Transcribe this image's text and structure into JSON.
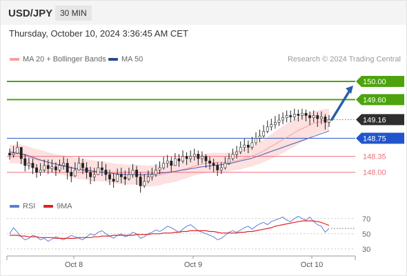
{
  "header": {
    "pair": "USD/JPY",
    "timeframe": "30 MIN"
  },
  "timestamp": "Thursday, October 10, 2024 3:36:45 AM CET",
  "legend": {
    "bollinger": "MA 20 + Bollinger Bands",
    "ma50": "MA 50"
  },
  "credit": "Research © 2024 Trading Central",
  "rsi_legend": {
    "rsi": "RSI",
    "ma": "9MA"
  },
  "colors": {
    "up_target": "#4ca30d",
    "support": "#e8707a",
    "pivot": "#2255cc",
    "current": "#2e2e2e",
    "arrow": "#2a5ea8",
    "bands": "#fde0e0",
    "ma20": "#f4a0a0",
    "ma50": "#4a5bb0",
    "rsi": "#5c7fd6",
    "rsi_ma": "#e02020"
  },
  "chart_data": [
    {
      "type": "candlestick",
      "title": "USD/JPY",
      "timeframe": "30 MIN",
      "x_ticks": [
        "Oct 8",
        "Oct 9",
        "Oct 10"
      ],
      "ylim": [
        147.57,
        150.35
      ],
      "levels": [
        {
          "label": "150.00",
          "value": 150.0,
          "kind": "resistance"
        },
        {
          "label": "149.60",
          "value": 149.6,
          "kind": "resistance"
        },
        {
          "label": "149.16",
          "value": 149.16,
          "kind": "current"
        },
        {
          "label": "148.75",
          "value": 148.75,
          "kind": "pivot"
        },
        {
          "label": "148.35",
          "value": 148.35,
          "kind": "support"
        },
        {
          "label": "148.00",
          "value": 148.0,
          "kind": "support"
        }
      ],
      "indicators": [
        "MA 20 + Bollinger Bands",
        "MA 50"
      ],
      "close": [
        148.38,
        148.42,
        148.55,
        148.3,
        148.15,
        148.2,
        148.1,
        148.0,
        148.05,
        148.15,
        148.08,
        148.12,
        148.05,
        148.15,
        148.2,
        148.0,
        147.92,
        148.05,
        148.2,
        148.1,
        148.0,
        147.9,
        147.95,
        148.1,
        148.05,
        147.95,
        147.85,
        147.8,
        147.95,
        147.9,
        147.85,
        147.95,
        148.05,
        147.9,
        147.7,
        147.8,
        147.9,
        147.95,
        148.05,
        148.1,
        148.2,
        148.25,
        148.15,
        148.3,
        148.25,
        148.35,
        148.3,
        148.35,
        148.4,
        148.3,
        148.35,
        148.25,
        148.2,
        148.15,
        148.05,
        148.1,
        148.2,
        148.3,
        148.4,
        148.45,
        148.55,
        148.6,
        148.55,
        148.65,
        148.75,
        148.8,
        148.9,
        149.0,
        149.05,
        149.1,
        149.15,
        149.2,
        149.25,
        149.22,
        149.28,
        149.25,
        149.3,
        149.25,
        149.2,
        149.25,
        149.18,
        149.22,
        149.1,
        149.16
      ],
      "high": [
        148.52,
        148.58,
        148.68,
        148.55,
        148.4,
        148.32,
        148.3,
        148.18,
        148.2,
        148.28,
        148.28,
        148.28,
        148.22,
        148.28,
        148.34,
        148.3,
        148.12,
        148.22,
        148.34,
        148.3,
        148.22,
        148.12,
        148.1,
        148.24,
        148.24,
        148.18,
        148.06,
        147.98,
        148.08,
        148.1,
        148.04,
        148.1,
        148.18,
        148.14,
        148.0,
        147.96,
        148.04,
        148.1,
        148.18,
        148.24,
        148.34,
        148.38,
        148.34,
        148.42,
        148.4,
        148.48,
        148.44,
        148.48,
        148.52,
        148.48,
        148.46,
        148.4,
        148.34,
        148.3,
        148.22,
        148.22,
        148.34,
        148.42,
        148.52,
        148.58,
        148.68,
        148.74,
        148.7,
        148.78,
        148.88,
        148.94,
        149.04,
        149.14,
        149.18,
        149.24,
        149.28,
        149.32,
        149.36,
        149.36,
        149.4,
        149.38,
        149.4,
        149.38,
        149.34,
        149.36,
        149.32,
        149.34,
        149.28,
        149.26
      ],
      "low": [
        148.28,
        148.32,
        148.4,
        148.18,
        148.02,
        148.06,
        147.96,
        147.88,
        147.92,
        148.0,
        147.96,
        148.0,
        147.92,
        148.0,
        148.06,
        147.84,
        147.78,
        147.9,
        148.04,
        147.96,
        147.86,
        147.74,
        147.8,
        147.94,
        147.92,
        147.82,
        147.72,
        147.66,
        147.78,
        147.76,
        147.72,
        147.82,
        147.88,
        147.72,
        147.55,
        147.66,
        147.76,
        147.82,
        147.9,
        147.96,
        148.06,
        148.1,
        148.02,
        148.14,
        148.12,
        148.2,
        148.16,
        148.22,
        148.26,
        148.16,
        148.2,
        148.1,
        148.06,
        148.0,
        147.92,
        147.96,
        148.06,
        148.16,
        148.26,
        148.3,
        148.4,
        148.46,
        148.42,
        148.5,
        148.6,
        148.66,
        148.76,
        148.86,
        148.92,
        148.96,
        149.02,
        149.06,
        149.1,
        149.1,
        149.14,
        149.12,
        149.16,
        149.12,
        149.04,
        149.1,
        149.0,
        149.06,
        148.94,
        149.0
      ],
      "ma20": [
        148.4,
        148.4,
        148.41,
        148.4,
        148.37,
        148.34,
        148.31,
        148.28,
        148.26,
        148.24,
        148.22,
        148.2,
        148.18,
        148.17,
        148.16,
        148.14,
        148.11,
        148.09,
        148.08,
        148.07,
        148.06,
        148.04,
        148.03,
        148.03,
        148.02,
        148.01,
        147.99,
        147.98,
        147.97,
        147.96,
        147.95,
        147.95,
        147.95,
        147.95,
        147.93,
        147.92,
        147.92,
        147.92,
        147.93,
        147.94,
        147.96,
        147.98,
        147.99,
        148.01,
        148.03,
        148.06,
        148.08,
        148.11,
        148.14,
        148.16,
        148.18,
        148.2,
        148.21,
        148.22,
        148.22,
        148.22,
        148.22,
        148.23,
        148.24,
        148.26,
        148.28,
        148.31,
        148.33,
        148.36,
        148.39,
        148.43,
        148.47,
        148.52,
        148.57,
        148.62,
        148.67,
        148.72,
        148.77,
        148.82,
        148.87,
        148.92,
        148.96,
        149.0,
        149.04,
        149.08,
        149.1,
        149.13,
        149.15,
        149.16
      ],
      "ma50": [
        148.45,
        148.44,
        148.43,
        148.41,
        148.39,
        148.36,
        148.33,
        148.3,
        148.27,
        148.25,
        148.22,
        148.2,
        148.18,
        148.16,
        148.14,
        148.12,
        148.1,
        148.08,
        148.07,
        148.05,
        148.04,
        148.03,
        148.02,
        148.01,
        148.0,
        147.99,
        147.98,
        147.97,
        147.96,
        147.96,
        147.95,
        147.95,
        147.95,
        147.95,
        147.95,
        147.95,
        147.96,
        147.96,
        147.97,
        147.98,
        147.99,
        148.0,
        148.01,
        148.02,
        148.04,
        148.05,
        148.06,
        148.08,
        148.09,
        148.11,
        148.12,
        148.13,
        148.14,
        148.15,
        148.16,
        148.17,
        148.18,
        148.19,
        148.21,
        148.23,
        148.25,
        148.27,
        148.29,
        148.31,
        148.34,
        148.37,
        148.4,
        148.43,
        148.46,
        148.49,
        148.52,
        148.55,
        148.58,
        148.61,
        148.64,
        148.67,
        148.7,
        148.73,
        148.76,
        148.79,
        148.82,
        148.85,
        148.88,
        148.91
      ],
      "band_halfwidth": [
        0.2,
        0.2,
        0.21,
        0.21,
        0.22,
        0.22,
        0.22,
        0.23,
        0.23,
        0.23,
        0.22,
        0.22,
        0.22,
        0.22,
        0.22,
        0.22,
        0.23,
        0.23,
        0.23,
        0.23,
        0.23,
        0.23,
        0.23,
        0.22,
        0.22,
        0.22,
        0.22,
        0.22,
        0.22,
        0.22,
        0.22,
        0.22,
        0.22,
        0.22,
        0.23,
        0.23,
        0.23,
        0.23,
        0.23,
        0.23,
        0.22,
        0.22,
        0.22,
        0.22,
        0.22,
        0.21,
        0.21,
        0.21,
        0.21,
        0.21,
        0.21,
        0.21,
        0.21,
        0.21,
        0.21,
        0.21,
        0.21,
        0.21,
        0.21,
        0.21,
        0.22,
        0.22,
        0.22,
        0.23,
        0.23,
        0.24,
        0.25,
        0.26,
        0.27,
        0.28,
        0.29,
        0.3,
        0.3,
        0.3,
        0.3,
        0.3,
        0.3,
        0.29,
        0.28,
        0.27,
        0.26,
        0.25,
        0.24,
        0.24
      ],
      "projection": {
        "from": 149.16,
        "to": 150.0
      }
    },
    {
      "type": "line",
      "title": "RSI",
      "series": [
        {
          "name": "RSI",
          "values": [
            50,
            58,
            52,
            46,
            42,
            44,
            48,
            46,
            42,
            44,
            40,
            43,
            46,
            44,
            42,
            45,
            48,
            46,
            44,
            42,
            46,
            50,
            48,
            52,
            54,
            50,
            47,
            44,
            48,
            50,
            46,
            48,
            52,
            50,
            44,
            46,
            50,
            52,
            55,
            53,
            56,
            60,
            58,
            55,
            52,
            56,
            60,
            62,
            58,
            54,
            52,
            50,
            48,
            46,
            42,
            44,
            48,
            52,
            54,
            52,
            55,
            58,
            60,
            56,
            60,
            63,
            65,
            62,
            66,
            68,
            70,
            72,
            68,
            66,
            70,
            73,
            70,
            68,
            72,
            66,
            62,
            60,
            52,
            57
          ]
        },
        {
          "name": "9MA",
          "values": [
            48,
            48,
            48,
            47,
            47,
            46,
            46,
            46,
            45,
            45,
            45,
            45,
            44,
            44,
            44,
            44,
            44,
            44,
            45,
            45,
            45,
            45,
            46,
            46,
            47,
            47,
            47,
            48,
            48,
            48,
            48,
            48,
            48,
            49,
            49,
            49,
            49,
            50,
            50,
            50,
            51,
            51,
            51,
            52,
            52,
            53,
            53,
            54,
            54,
            54,
            54,
            54,
            53,
            53,
            52,
            51,
            51,
            51,
            51,
            51,
            52,
            52,
            53,
            53,
            54,
            55,
            56,
            57,
            58,
            60,
            61,
            62,
            63,
            64,
            65,
            66,
            67,
            67,
            67,
            67,
            66,
            65,
            63,
            61
          ]
        }
      ],
      "ylim": [
        28,
        78
      ],
      "y_ticks": [
        "70",
        "50",
        "30"
      ]
    }
  ]
}
